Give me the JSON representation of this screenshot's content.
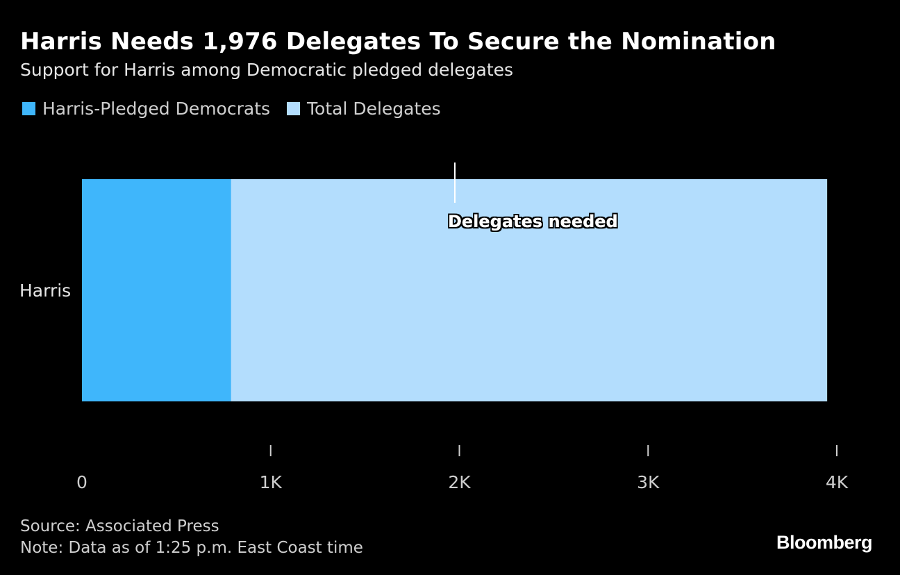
{
  "header": {
    "title": "Harris Needs 1,976 Delegates To Secure the Nomination",
    "subtitle": "Support for Harris among Democratic pledged delegates"
  },
  "legend": [
    {
      "label": "Harris-Pledged Democrats",
      "color": "#3fb6fb"
    },
    {
      "label": "Total Delegates",
      "color": "#b3ddfd"
    }
  ],
  "chart_data": {
    "type": "bar",
    "orientation": "horizontal",
    "stacked": false,
    "categories": [
      "Harris"
    ],
    "series": [
      {
        "name": "Total Delegates",
        "values": [
          3949
        ],
        "color": "#b3ddfd"
      },
      {
        "name": "Harris-Pledged Democrats",
        "values": [
          790
        ],
        "color": "#3fb6fb"
      }
    ],
    "xlim": [
      0,
      4000
    ],
    "ticks": [
      0,
      1000,
      2000,
      3000,
      4000
    ],
    "tick_labels": [
      "0",
      "1K",
      "2K",
      "3K",
      "4K"
    ],
    "annotation": {
      "label": "Delegates needed",
      "value": 1976
    },
    "grid": false,
    "legend_position": "top-left"
  },
  "footer": {
    "source": "Source: Associated Press",
    "note": "Note: Data as of 1:25 p.m. East Coast time",
    "brand": "Bloomberg"
  }
}
